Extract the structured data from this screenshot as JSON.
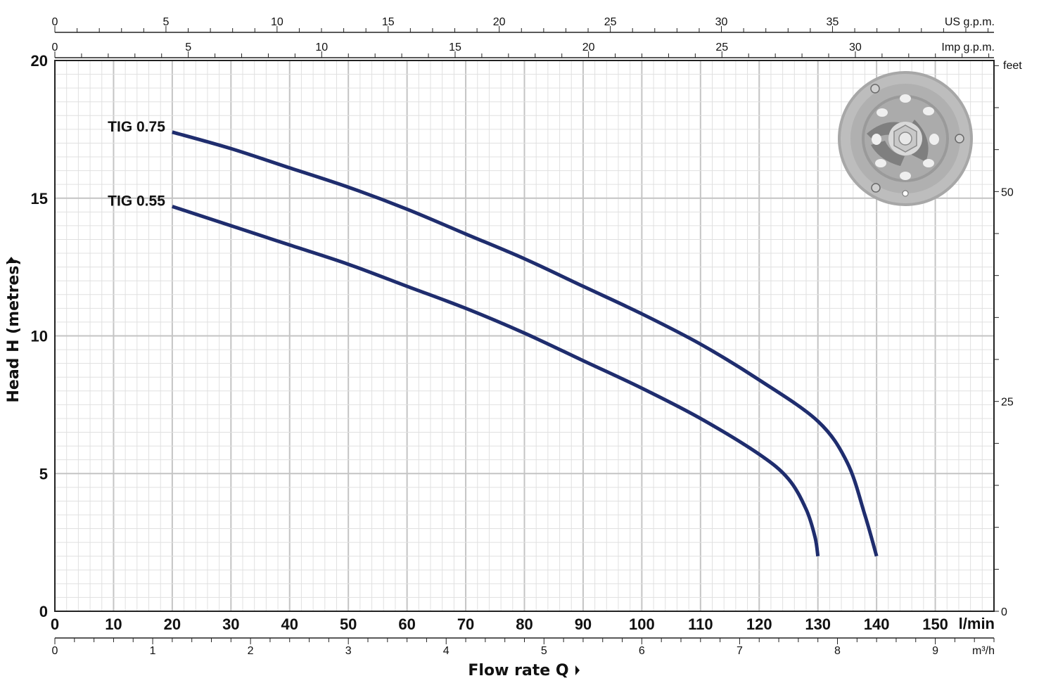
{
  "chart_data": {
    "type": "line",
    "xlabel": "Flow rate Q",
    "ylabel": "Head H  (metres)",
    "x_unit": "l/min",
    "xlim": [
      0,
      160
    ],
    "ylim": [
      0,
      20
    ],
    "x_ticks": [
      0,
      10,
      20,
      30,
      40,
      50,
      60,
      70,
      80,
      90,
      100,
      110,
      120,
      130,
      140,
      150
    ],
    "y_ticks": [
      0,
      5,
      10,
      15,
      20
    ],
    "secondary_axes": {
      "top_us": {
        "unit": "US g.p.m.",
        "ticks": [
          0,
          5,
          10,
          15,
          20,
          25,
          30,
          35
        ]
      },
      "top_imp": {
        "unit": "Imp g.p.m.",
        "ticks": [
          0,
          5,
          10,
          15,
          20,
          25,
          30
        ]
      },
      "bottom_m3h": {
        "unit": "m³/h",
        "ticks": [
          0,
          1,
          2,
          3,
          4,
          5,
          6,
          7,
          8,
          9
        ]
      },
      "right_feet": {
        "unit": "feet",
        "ticks": [
          0,
          25,
          50
        ]
      }
    },
    "grid": true,
    "line_color": "#1f2d6e",
    "series": [
      {
        "name": "TIG 0.75",
        "points": [
          [
            20,
            17.4
          ],
          [
            30,
            16.8
          ],
          [
            40,
            16.1
          ],
          [
            50,
            15.4
          ],
          [
            60,
            14.6
          ],
          [
            70,
            13.7
          ],
          [
            80,
            12.8
          ],
          [
            90,
            11.8
          ],
          [
            100,
            10.8
          ],
          [
            110,
            9.7
          ],
          [
            120,
            8.4
          ],
          [
            130,
            6.9
          ],
          [
            135,
            5.4
          ],
          [
            138,
            3.5
          ],
          [
            140,
            2.0
          ]
        ]
      },
      {
        "name": "TIG 0.55",
        "points": [
          [
            20,
            14.7
          ],
          [
            30,
            14.0
          ],
          [
            40,
            13.3
          ],
          [
            50,
            12.6
          ],
          [
            60,
            11.8
          ],
          [
            70,
            11.0
          ],
          [
            80,
            10.1
          ],
          [
            90,
            9.1
          ],
          [
            100,
            8.1
          ],
          [
            110,
            7.0
          ],
          [
            120,
            5.7
          ],
          [
            125,
            4.8
          ],
          [
            128,
            3.7
          ],
          [
            129.5,
            2.7
          ],
          [
            130,
            2.0
          ]
        ]
      }
    ]
  }
}
